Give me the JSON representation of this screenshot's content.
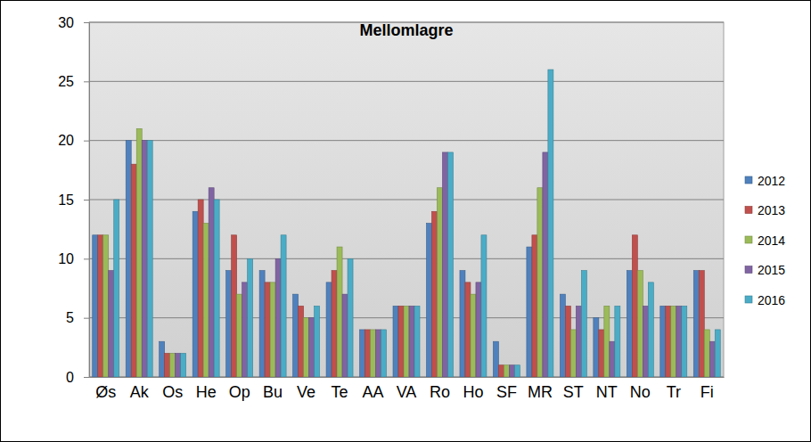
{
  "chart_data": {
    "type": "bar",
    "title": "Mellomlagre",
    "categories": [
      "Øs",
      "Ak",
      "Os",
      "He",
      "Op",
      "Bu",
      "Ve",
      "Te",
      "AA",
      "VA",
      "Ro",
      "Ho",
      "SF",
      "MR",
      "ST",
      "NT",
      "No",
      "Tr",
      "Fi"
    ],
    "series": [
      {
        "name": "2012",
        "color": "#4f81bd",
        "values": [
          12,
          20,
          3,
          14,
          9,
          9,
          7,
          8,
          4,
          6,
          13,
          9,
          3,
          11,
          7,
          5,
          9,
          6,
          9
        ]
      },
      {
        "name": "2013",
        "color": "#c0504d",
        "values": [
          12,
          18,
          2,
          15,
          12,
          8,
          6,
          9,
          4,
          6,
          14,
          8,
          1,
          12,
          6,
          4,
          12,
          6,
          9
        ]
      },
      {
        "name": "2014",
        "color": "#9bbb59",
        "values": [
          12,
          21,
          2,
          13,
          7,
          8,
          5,
          11,
          4,
          6,
          16,
          7,
          1,
          16,
          4,
          6,
          9,
          6,
          4
        ]
      },
      {
        "name": "2015",
        "color": "#8064a2",
        "values": [
          9,
          20,
          2,
          16,
          8,
          10,
          5,
          7,
          4,
          6,
          19,
          8,
          1,
          19,
          6,
          3,
          6,
          6,
          3
        ]
      },
      {
        "name": "2016",
        "color": "#4bacc6",
        "values": [
          15,
          20,
          2,
          15,
          10,
          12,
          6,
          10,
          4,
          6,
          19,
          12,
          1,
          26,
          9,
          6,
          8,
          6,
          4
        ]
      }
    ],
    "ylim": [
      0,
      30
    ],
    "yticks": [
      0,
      5,
      10,
      15,
      20,
      25,
      30
    ],
    "grid": true,
    "legend": "right"
  }
}
